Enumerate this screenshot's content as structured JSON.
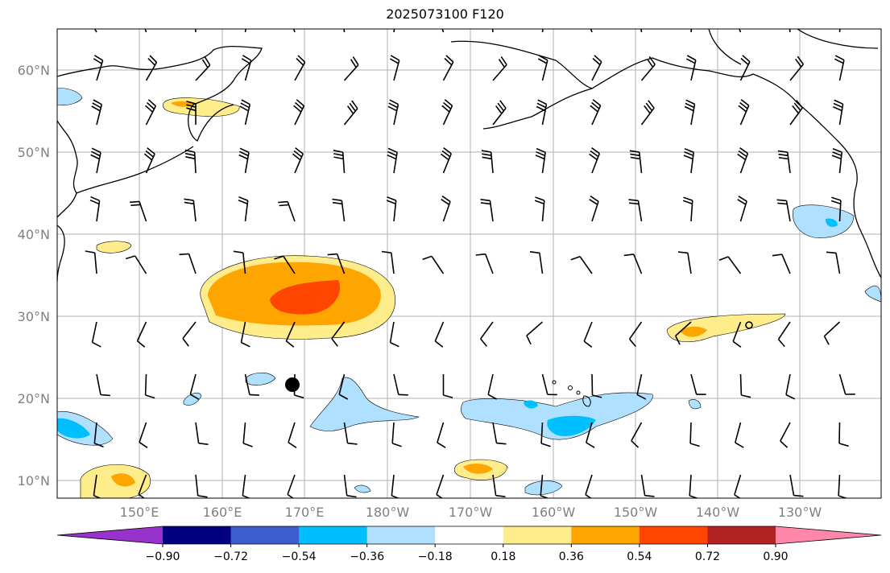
{
  "title": "2025073100 F120",
  "lat_labels": [
    "60°N",
    "50°N",
    "40°N",
    "30°N",
    "20°N",
    "10°N"
  ],
  "lon_labels": [
    "150°E",
    "160°E",
    "170°E",
    "180°W",
    "170°W",
    "160°W",
    "150°W",
    "140°W",
    "130°W"
  ],
  "colorbar": {
    "ticks": [
      "−0.90",
      "−0.72",
      "−0.54",
      "−0.36",
      "−0.18",
      "0.18",
      "0.36",
      "0.54",
      "0.72",
      "0.90"
    ],
    "colors": [
      "#9932cc",
      "#000080",
      "#3a5fcd",
      "#00bfff",
      "#b0e0ff",
      "#ffffff",
      "#ffec8b",
      "#ffa500",
      "#ff4500",
      "#b22222",
      "#ff88aa"
    ]
  },
  "markers": {
    "dot": {
      "lon": 172,
      "lat": 22
    },
    "circle": {
      "lon": -136,
      "lat": 29
    }
  }
}
